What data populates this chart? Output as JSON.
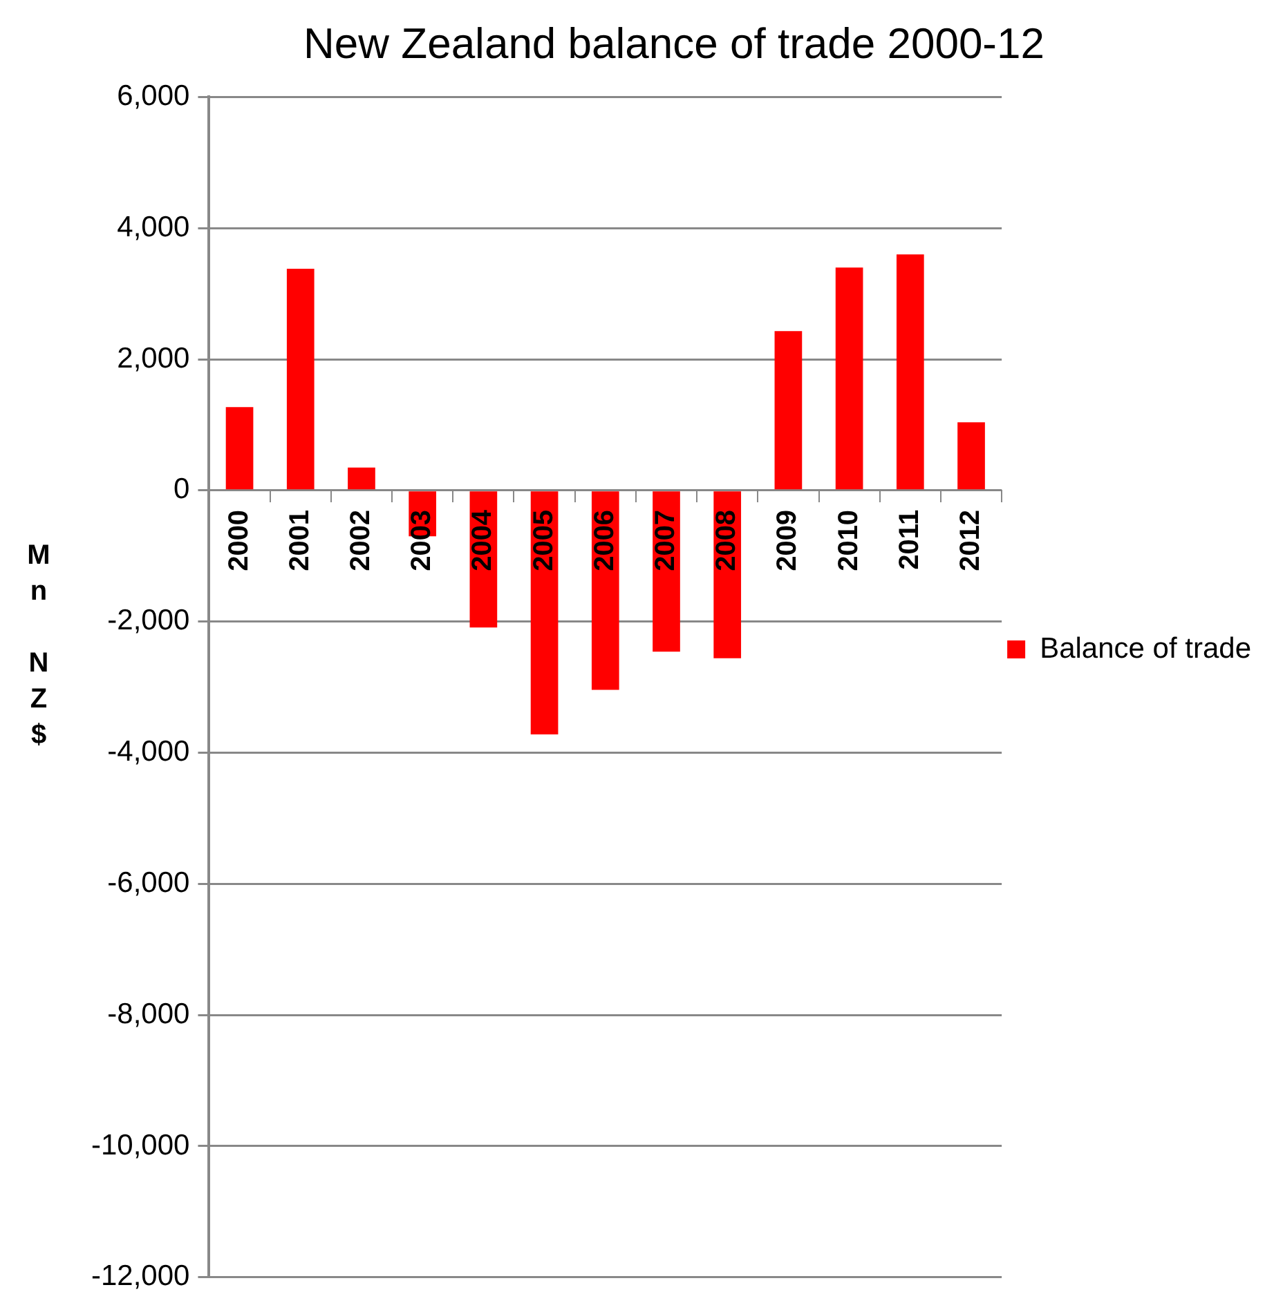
{
  "chart_data": {
    "type": "bar",
    "title": "New Zealand balance of trade 2000-12",
    "ylabel": "Mn NZ$",
    "categories": [
      "2000",
      "2001",
      "2002",
      "2003",
      "2004",
      "2005",
      "2006",
      "2007",
      "2008",
      "2009",
      "2010",
      "2011",
      "2012"
    ],
    "series": [
      {
        "name": "Balance of trade",
        "color": "#ff0000",
        "values": [
          1270,
          3380,
          350,
          -700,
          -2090,
          -3720,
          -3040,
          -2460,
          -2560,
          2430,
          3400,
          3600,
          1040
        ]
      }
    ],
    "ylim": [
      -12000,
      6000
    ],
    "yticks": [
      {
        "value": -12000,
        "label": "-12,000"
      },
      {
        "value": -10000,
        "label": "-10,000"
      },
      {
        "value": -8000,
        "label": "-8,000"
      },
      {
        "value": -6000,
        "label": "-6,000"
      },
      {
        "value": -4000,
        "label": "-4,000"
      },
      {
        "value": -2000,
        "label": "-2,000"
      },
      0,
      {
        "value": 2000,
        "label": "2,000"
      },
      {
        "value": 4000,
        "label": "4,000"
      },
      {
        "value": 6000,
        "label": "6,000"
      }
    ],
    "grid": "y",
    "legend": "right"
  }
}
